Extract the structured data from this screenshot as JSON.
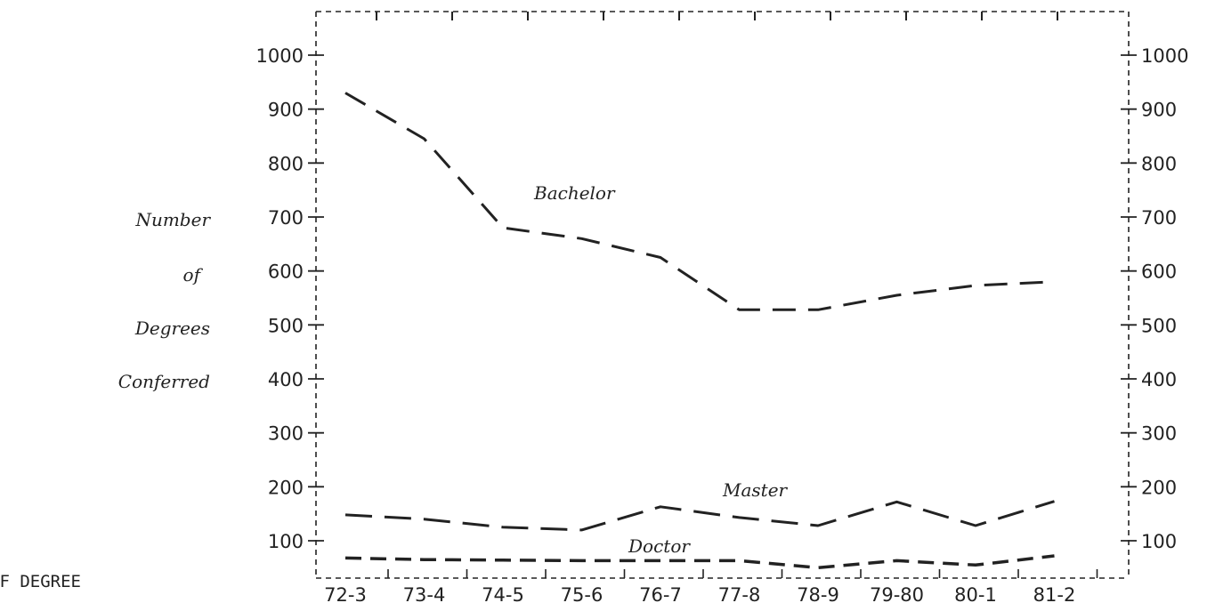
{
  "chart_data": {
    "type": "line",
    "title": "",
    "ylabel_lines": [
      "Number",
      "of",
      "Degrees",
      "Conferred"
    ],
    "xlabel": "",
    "categories": [
      "72-3",
      "73-4",
      "74-5",
      "75-6",
      "76-7",
      "77-8",
      "78-9",
      "79-80",
      "80-1",
      "81-2"
    ],
    "ylim": [
      40,
      1050
    ],
    "yticks": [
      100,
      200,
      300,
      400,
      500,
      600,
      700,
      800,
      900,
      1000
    ],
    "grid": false,
    "legend": "inline",
    "series": [
      {
        "name": "Bachelor",
        "values": [
          930,
          845,
          680,
          660,
          625,
          528,
          528,
          555,
          573,
          580
        ]
      },
      {
        "name": "Master",
        "values": [
          148,
          140,
          125,
          120,
          163,
          143,
          128,
          172,
          128,
          173
        ]
      },
      {
        "name": "Doctor",
        "values": [
          68,
          65,
          64,
          63,
          63,
          63,
          50,
          63,
          55,
          72
        ]
      }
    ],
    "bottom_caption": "OF DEGREE",
    "line_color": "#222222"
  }
}
